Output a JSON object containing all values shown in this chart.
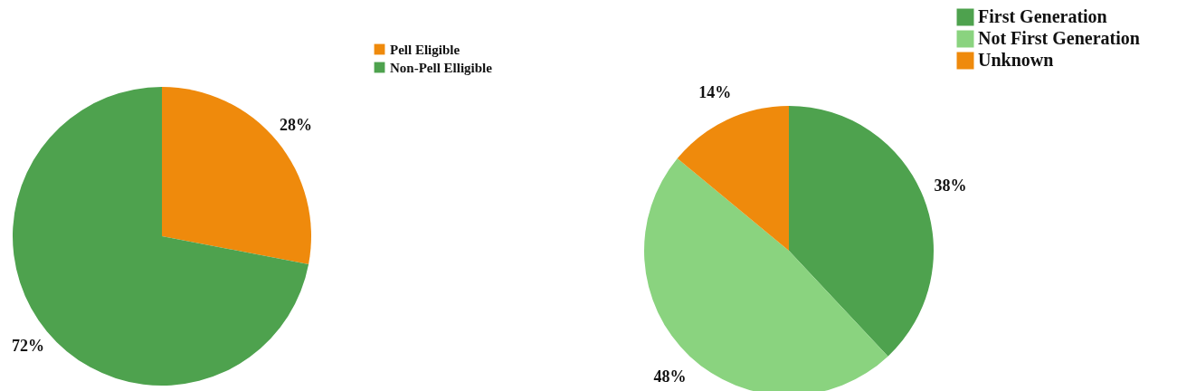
{
  "chart_data": [
    {
      "type": "pie",
      "categories": [
        "Pell Eligible",
        "Non-Pell Elligible"
      ],
      "values": [
        28,
        72
      ],
      "colors": [
        "#ef8a0c",
        "#4ea24e"
      ],
      "value_labels": [
        "28%",
        "72%"
      ],
      "legend": "top right"
    },
    {
      "type": "pie",
      "categories": [
        "First Generation",
        "Not First Generation",
        "Unknown"
      ],
      "values": [
        38,
        48,
        14
      ],
      "colors": [
        "#4ea24e",
        "#8ad37f",
        "#ef8a0c"
      ],
      "value_labels": [
        "38%",
        "48%",
        "14%"
      ],
      "legend": "top right"
    }
  ]
}
